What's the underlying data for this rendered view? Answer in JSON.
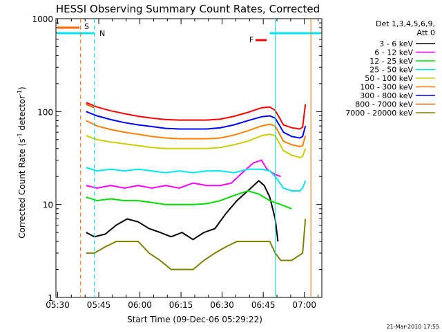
{
  "chart_data": {
    "type": "line",
    "title": "HESSI Observing Summary Count Rates, Corrected",
    "xlabel": "Start Time (09-Dec-06 05:29:22)",
    "ylabel_main": "Corrected Count Rate (s",
    "ylabel_sup1": "-1",
    "ylabel_mid": " detector",
    "ylabel_sup2": "-1",
    "ylabel_end": ")",
    "y_scale": "log",
    "ylim": [
      1,
      1000
    ],
    "xlim_minutes": [
      0,
      97
    ],
    "x_tick_labels": [
      "05:30",
      "05:45",
      "06:00",
      "06:15",
      "06:30",
      "06:45",
      "07:00"
    ],
    "x_tick_minutes": [
      0.63,
      15.63,
      30.63,
      45.63,
      60.63,
      75.63,
      90.63
    ],
    "y_tick_labels": [
      "1",
      "10",
      "100",
      "1000"
    ],
    "y_tick_values": [
      1,
      10,
      100,
      1000
    ],
    "legend_header_1": "Det 1,3,4,5,6,9,",
    "legend_header_2": "Att 0",
    "legend_placement": "right",
    "footer_date": "21-Mar-2010 17:55",
    "flag_labels": {
      "S": "S",
      "N": "N",
      "F": "F"
    },
    "flag_colors": {
      "S": "#ff6600",
      "N": "#00e5ee",
      "F": "#ff0000"
    },
    "data_start_minute": 11,
    "data_end_minute": 91,
    "night_start_minute": 0,
    "night_end_minute": 14,
    "saa_end_minute": 9,
    "series": [
      {
        "name": "3 - 6 keV",
        "color": "#000000",
        "x": [
          11,
          14,
          18,
          22,
          26,
          30,
          34,
          38,
          42,
          46,
          50,
          54,
          58,
          62,
          66,
          70,
          74,
          76,
          78,
          80,
          81
        ],
        "y": [
          5,
          4.5,
          4.8,
          6,
          7,
          6.5,
          5.5,
          5,
          4.5,
          5,
          4.2,
          5,
          5.5,
          8,
          11,
          14,
          18,
          16,
          12,
          7,
          4
        ]
      },
      {
        "name": "6 - 12 keV",
        "color": "#ff00ff",
        "x": [
          11,
          15,
          20,
          25,
          30,
          35,
          40,
          45,
          50,
          55,
          60,
          64,
          68,
          72,
          75,
          77,
          80,
          82
        ],
        "y": [
          16,
          15,
          16,
          15,
          16,
          15,
          16,
          15,
          17,
          16,
          16,
          17,
          22,
          28,
          30,
          24,
          21,
          20
        ]
      },
      {
        "name": "12 - 25 keV",
        "color": "#00dd00",
        "x": [
          11,
          15,
          20,
          25,
          30,
          35,
          40,
          45,
          50,
          55,
          60,
          65,
          70,
          74,
          78,
          82,
          86
        ],
        "y": [
          12,
          11,
          11.5,
          11,
          11,
          10.5,
          10,
          10,
          10,
          10.2,
          11,
          12.5,
          14,
          13,
          11,
          10,
          9
        ]
      },
      {
        "name": "25 - 50 keV",
        "color": "#00e5ee",
        "x": [
          11,
          15,
          20,
          25,
          30,
          35,
          40,
          45,
          50,
          55,
          60,
          65,
          70,
          75,
          78,
          80,
          83,
          86,
          89,
          90,
          91
        ],
        "y": [
          25,
          23,
          24,
          23,
          24,
          23,
          22,
          23,
          22,
          23,
          23,
          22,
          24,
          24,
          23,
          20,
          15,
          14,
          14,
          15,
          18
        ]
      },
      {
        "name": "50 - 100 keV",
        "color": "#cccc00",
        "x": [
          11,
          15,
          20,
          25,
          30,
          35,
          40,
          45,
          50,
          55,
          60,
          65,
          70,
          75,
          78,
          80,
          83,
          86,
          89,
          90,
          91
        ],
        "y": [
          55,
          50,
          47,
          45,
          43,
          41,
          40,
          40,
          40,
          40,
          41,
          44,
          48,
          55,
          57,
          55,
          38,
          34,
          32,
          33,
          40
        ]
      },
      {
        "name": "100 - 300 keV",
        "color": "#ff7f00",
        "x": [
          11,
          15,
          20,
          25,
          30,
          35,
          40,
          45,
          50,
          55,
          60,
          65,
          70,
          75,
          78,
          80,
          83,
          86,
          89,
          90,
          91
        ],
        "y": [
          80,
          70,
          64,
          60,
          57,
          54,
          52,
          51,
          51,
          51,
          52,
          56,
          62,
          70,
          73,
          70,
          48,
          44,
          42,
          43,
          55
        ]
      },
      {
        "name": "300 - 800 keV",
        "color": "#0000ff",
        "x": [
          11,
          15,
          20,
          25,
          30,
          35,
          40,
          45,
          50,
          55,
          60,
          65,
          70,
          75,
          78,
          80,
          83,
          86,
          89,
          90,
          91
        ],
        "y": [
          100,
          90,
          82,
          76,
          72,
          69,
          66,
          65,
          65,
          65,
          67,
          72,
          80,
          88,
          90,
          85,
          60,
          54,
          52,
          54,
          70
        ]
      },
      {
        "name": "800 - 7000 keV",
        "color": "#cc6600",
        "x": [
          11,
          14
        ],
        "y": [
          120,
          110
        ]
      },
      {
        "name": "7000 - 20000 keV",
        "color": "#808000",
        "x": [
          11,
          14,
          18,
          22,
          26,
          30,
          34,
          38,
          42,
          46,
          50,
          54,
          58,
          62,
          66,
          70,
          74,
          78,
          80,
          82,
          86,
          90,
          91
        ],
        "y": [
          3,
          3,
          3.5,
          4,
          4,
          4,
          3,
          2.5,
          2,
          2,
          2,
          2.5,
          3,
          3.5,
          4,
          4,
          4,
          4,
          3,
          2.5,
          2.5,
          3,
          7
        ]
      }
    ],
    "red_top": {
      "x": [
        11,
        15,
        20,
        25,
        30,
        35,
        40,
        45,
        50,
        55,
        60,
        65,
        70,
        75,
        78,
        80,
        83,
        86,
        89,
        90,
        91
      ],
      "y": [
        125,
        112,
        102,
        95,
        89,
        85,
        82,
        81,
        81,
        81,
        83,
        89,
        98,
        110,
        112,
        103,
        72,
        67,
        65,
        68,
        120
      ],
      "color": "#ff0000"
    }
  }
}
